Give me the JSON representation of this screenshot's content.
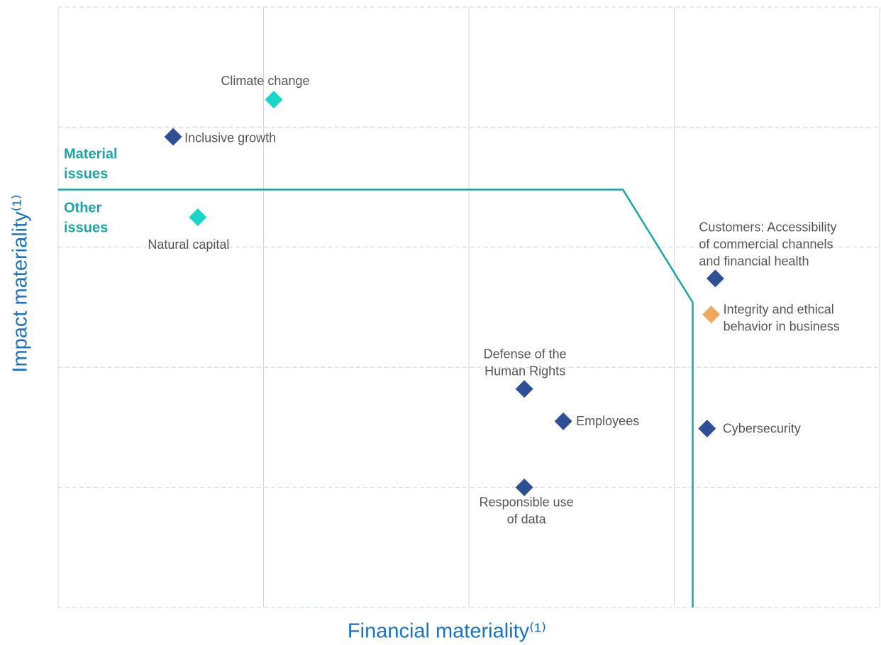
{
  "chart_data": {
    "type": "scatter",
    "x_label": "Financial materiality⁽¹⁾",
    "y_label": "Impact materiality⁽¹⁾",
    "xlim": [
      0,
      4
    ],
    "xticks": [
      0,
      1,
      2,
      3,
      4
    ],
    "ylim": [
      0,
      5
    ],
    "yticks": [
      0,
      1,
      2,
      3,
      4,
      5
    ],
    "grid": true,
    "points": [
      {
        "label": [
          "Climate change"
        ],
        "x": 1.05,
        "y": 4.23,
        "color": "#19d6c8"
      },
      {
        "label": [
          "Inclusive growth"
        ],
        "x": 0.56,
        "y": 3.92,
        "color": "#2e4f93"
      },
      {
        "label": [
          "Natural capital"
        ],
        "x": 0.68,
        "y": 3.25,
        "color": "#19d6c8"
      },
      {
        "label": [
          "Customers: Accessibility",
          "of commercial channels",
          "and financial health"
        ],
        "x": 3.2,
        "y": 2.74,
        "color": "#2e4f93"
      },
      {
        "label": [
          "Integrity and ethical",
          "behavior in business"
        ],
        "x": 3.18,
        "y": 2.44,
        "color": "#f0a85a"
      },
      {
        "label": [
          "Defense of the",
          "Human Rights"
        ],
        "x": 2.27,
        "y": 1.82,
        "color": "#2e4f93"
      },
      {
        "label": [
          "Employees"
        ],
        "x": 2.46,
        "y": 1.55,
        "color": "#2e4f93"
      },
      {
        "label": [
          "Cybersecurity"
        ],
        "x": 3.16,
        "y": 1.49,
        "color": "#2e4f93"
      },
      {
        "label": [
          "Responsible use",
          "of data"
        ],
        "x": 2.27,
        "y": 1.0,
        "color": "#2e4f93"
      }
    ],
    "threshold": {
      "x": [
        0,
        2.75,
        3.09,
        3.09
      ],
      "y": [
        3.48,
        3.48,
        2.54,
        0
      ],
      "color": "#1aa6a6"
    },
    "annotations": [
      {
        "text": [
          "Material",
          "issues"
        ]
      },
      {
        "text": [
          "Other",
          "issues"
        ]
      }
    ]
  }
}
